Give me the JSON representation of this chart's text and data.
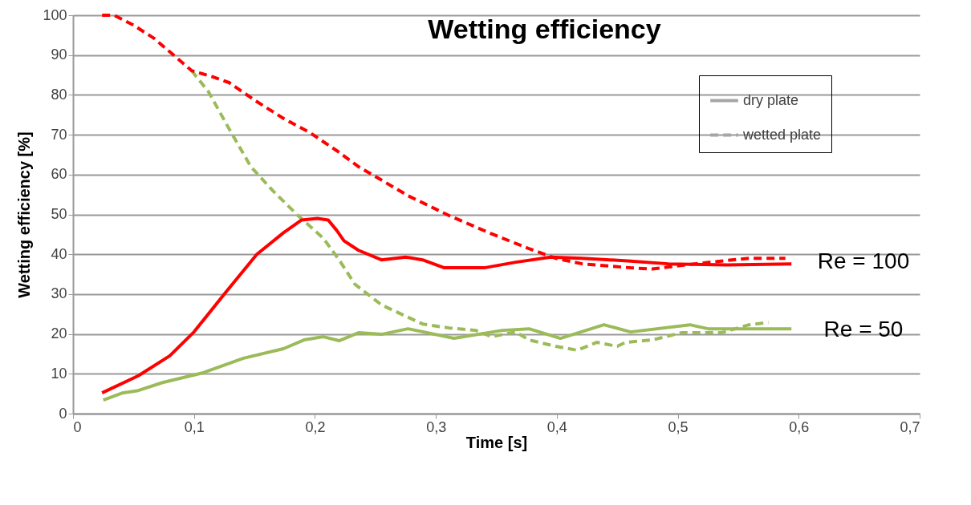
{
  "chart_data": {
    "type": "line",
    "title": "Wetting efficiency",
    "xlabel": "Time [s]",
    "ylabel": "Wetting efficiency [%]",
    "xlim": [
      0,
      0.7
    ],
    "xticks": [
      0,
      {
        "value": 0.1,
        "label": "0,1"
      },
      {
        "value": 0.2,
        "label": "0,2"
      },
      {
        "value": 0.3,
        "label": "0,3"
      },
      {
        "value": 0.4,
        "label": "0,4"
      },
      {
        "value": 0.5,
        "label": "0,5"
      },
      {
        "value": 0.6,
        "label": "0,6"
      },
      {
        "value": 0.7,
        "label": "0,7"
      }
    ],
    "ylim": [
      0,
      100
    ],
    "yticks": [
      0,
      10,
      20,
      30,
      40,
      50,
      60,
      70,
      80,
      90,
      100
    ],
    "grid": "y",
    "annotations": [
      "Re = 100",
      "Re = 50",
      "dry plate",
      "wetted plate"
    ],
    "series": [
      {
        "color": "#9bbb59",
        "line_style": "solid",
        "x": [
          0.025,
          0.041,
          0.054,
          0.074,
          0.107,
          0.141,
          0.174,
          0.191,
          0.207,
          0.22,
          0.236,
          0.255,
          0.277,
          0.315,
          0.355,
          0.377,
          0.403,
          0.439,
          0.461,
          0.51,
          0.525,
          0.594
        ],
        "values": [
          3.4,
          5.2,
          5.8,
          7.8,
          10.2,
          13.9,
          16.3,
          18.5,
          19.3,
          18.3,
          20.3,
          19.9,
          21.3,
          18.9,
          20.9,
          21.3,
          18.9,
          22.3,
          20.5,
          22.3,
          21.3,
          21.3
        ]
      },
      {
        "color": "#9bbb59",
        "line_style": "dashed",
        "x": [
          0.098,
          0.112,
          0.129,
          0.147,
          0.165,
          0.185,
          0.207,
          0.22,
          0.233,
          0.255,
          0.289,
          0.311,
          0.333,
          0.346,
          0.366,
          0.377,
          0.399,
          0.417,
          0.433,
          0.45,
          0.457,
          0.479,
          0.503,
          0.536,
          0.559,
          0.575
        ],
        "values": [
          86.1,
          80.8,
          71.5,
          62,
          56,
          50,
          44,
          38.6,
          32.5,
          27.3,
          22.5,
          21.5,
          20.9,
          19.3,
          20.5,
          18.5,
          16.9,
          15.9,
          17.9,
          16.9,
          17.9,
          18.5,
          20.3,
          20.3,
          22.3,
          22.9
        ]
      },
      {
        "color": "#ff0000",
        "line_style": "solid",
        "x": [
          0.024,
          0.054,
          0.08,
          0.1,
          0.125,
          0.152,
          0.174,
          0.189,
          0.202,
          0.211,
          0.218,
          0.224,
          0.236,
          0.255,
          0.275,
          0.289,
          0.307,
          0.34,
          0.366,
          0.395,
          0.421,
          0.461,
          0.492,
          0.541,
          0.594
        ],
        "values": [
          5.2,
          9.5,
          14.5,
          20.5,
          30,
          40,
          45.4,
          48.6,
          49,
          48.6,
          46,
          43.4,
          41,
          38.6,
          39.3,
          38.6,
          36.6,
          36.6,
          38,
          39.3,
          39,
          38.3,
          37.6,
          37.3,
          37.6
        ]
      },
      {
        "color": "#ff0000",
        "line_style": "dashed",
        "x": [
          0.024,
          0.034,
          0.05,
          0.067,
          0.085,
          0.098,
          0.116,
          0.129,
          0.151,
          0.174,
          0.196,
          0.218,
          0.236,
          0.249,
          0.277,
          0.311,
          0.344,
          0.377,
          0.399,
          0.421,
          0.461,
          0.479,
          0.514,
          0.559,
          0.589
        ],
        "values": [
          100,
          100,
          97.5,
          94.2,
          89.5,
          86.1,
          84.5,
          83.1,
          78.5,
          74.1,
          70.5,
          66,
          62,
          59.7,
          54.7,
          49.7,
          45.4,
          41.4,
          39,
          37.6,
          36.6,
          36.3,
          37.6,
          39,
          39
        ]
      }
    ]
  }
}
